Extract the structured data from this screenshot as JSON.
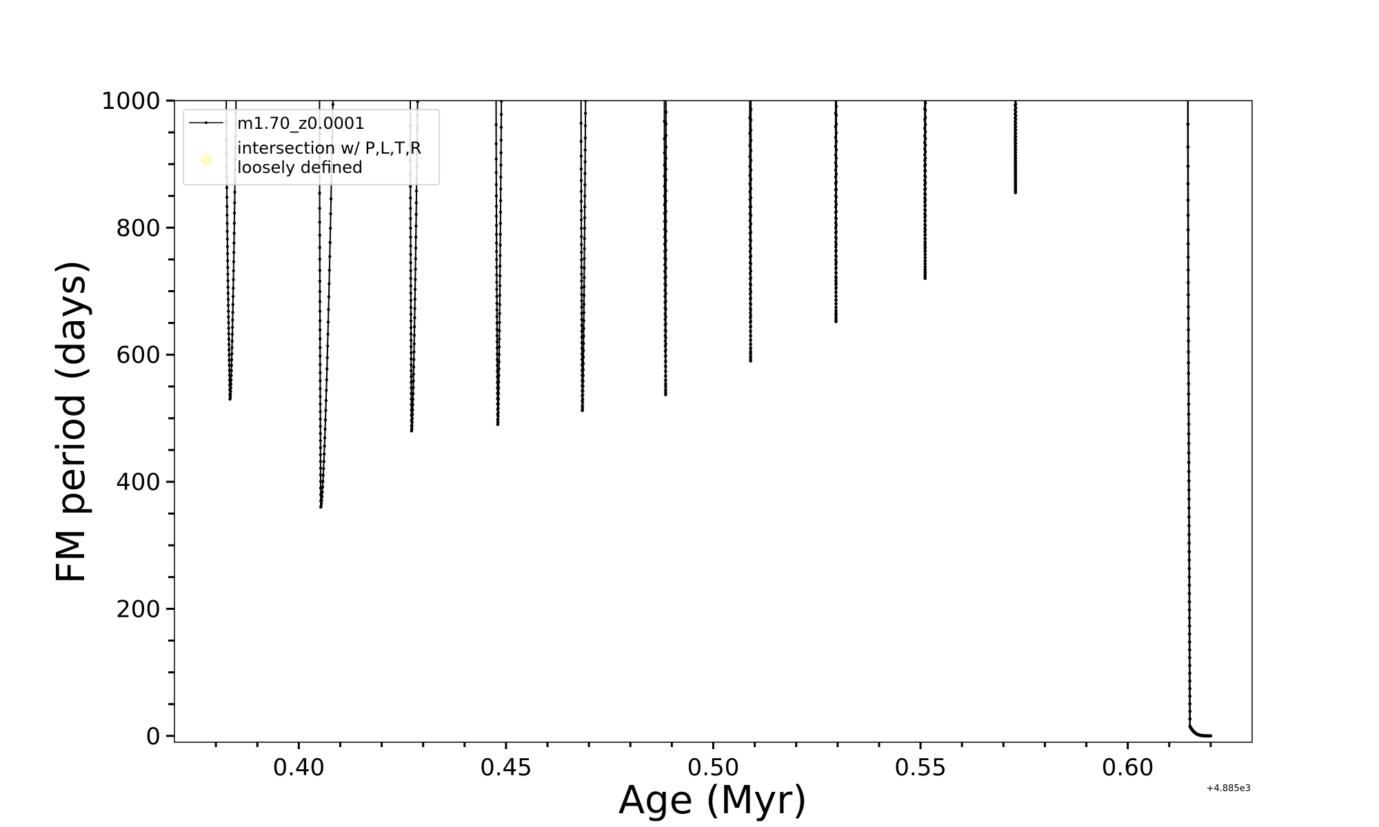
{
  "chart_data": {
    "type": "line",
    "xlabel": "Age (Myr)",
    "ylabel": "FM period (days)",
    "x_offset_label": "+4.885e3",
    "xlim": [
      0.37,
      0.63
    ],
    "ylim": [
      -10,
      1000
    ],
    "x_ticks": [
      0.4,
      0.45,
      0.5,
      0.55,
      0.6
    ],
    "x_tick_labels": [
      "0.40",
      "0.45",
      "0.50",
      "0.55",
      "0.60"
    ],
    "x_minor_ticks": [
      0.38,
      0.39,
      0.41,
      0.42,
      0.43,
      0.44,
      0.46,
      0.47,
      0.48,
      0.49,
      0.51,
      0.52,
      0.53,
      0.54,
      0.56,
      0.57,
      0.58,
      0.59,
      0.61,
      0.62
    ],
    "y_ticks": [
      0,
      200,
      400,
      600,
      800,
      1000
    ],
    "y_tick_labels": [
      "0",
      "200",
      "400",
      "600",
      "800",
      "1000"
    ],
    "y_minor_ticks": [
      50,
      100,
      150,
      250,
      300,
      350,
      450,
      500,
      550,
      650,
      700,
      750,
      850,
      900,
      950
    ],
    "legend": {
      "placement": "upper-left",
      "entries": [
        {
          "label": "m1.70_z0.0001",
          "color": "#000000",
          "marker": "line-dot"
        },
        {
          "label_line1": "intersection w/ P,L,T,R",
          "label_line2": "loosely defined",
          "color": "#ffffc0",
          "marker": "circle"
        }
      ]
    },
    "series": [
      {
        "name": "m1.70_z0.0001",
        "color": "#000000",
        "dips": [
          {
            "x_start": 0.3825,
            "x_min": 0.3834,
            "x_end": 0.3849,
            "y_min": 530
          },
          {
            "x_start": 0.405,
            "x_min": 0.4053,
            "x_end": 0.4083,
            "y_min": 360
          },
          {
            "x_start": 0.4269,
            "x_min": 0.4272,
            "x_end": 0.4287,
            "y_min": 480
          },
          {
            "x_start": 0.4476,
            "x_min": 0.448,
            "x_end": 0.4489,
            "y_min": 490
          },
          {
            "x_start": 0.4681,
            "x_min": 0.4684,
            "x_end": 0.4692,
            "y_min": 512
          },
          {
            "x_start": 0.4882,
            "x_min": 0.4885,
            "x_end": 0.4886,
            "y_min": 537
          },
          {
            "x_start": 0.5088,
            "x_min": 0.509,
            "x_end": 0.5091,
            "y_min": 590
          },
          {
            "x_start": 0.5295,
            "x_min": 0.5296,
            "x_end": 0.5297,
            "y_min": 652
          },
          {
            "x_start": 0.551,
            "x_min": 0.5511,
            "x_end": 0.5512,
            "y_min": 720
          },
          {
            "x_start": 0.5728,
            "x_min": 0.5729,
            "x_end": 0.573,
            "y_min": 855
          }
        ],
        "final_drop": {
          "x_start": 0.6145,
          "x_knee": 0.615,
          "x_end": 0.62,
          "y_end": 0
        }
      }
    ]
  }
}
